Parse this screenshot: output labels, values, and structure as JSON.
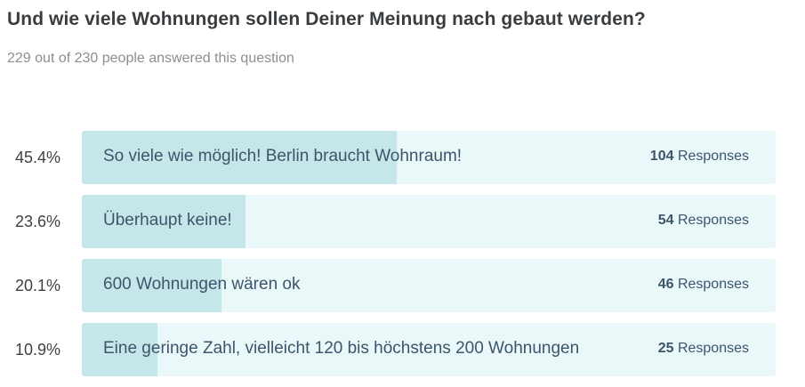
{
  "question": {
    "title": "Und wie viele Wohnungen sollen Deiner Meinung nach gebaut werden?",
    "answered": "229 out of 230 people answered this question"
  },
  "colors": {
    "track": "#ebf8f9",
    "fill": "#c5e7ea",
    "label_text": "#3c556b",
    "title_text": "#3a3d40",
    "subtitle_text": "#8a8f93"
  },
  "chart_data": {
    "type": "bar",
    "orientation": "horizontal",
    "categories": [
      "So viele wie möglich! Berlin braucht Wohnraum!",
      "Überhaupt keine!",
      "600 Wohnungen wären ok",
      "Eine geringe Zahl, vielleicht 120 bis höchstens 200 Wohnungen"
    ],
    "values": [
      104,
      54,
      46,
      25
    ],
    "percent_labels": [
      "45.4%",
      "23.6%",
      "20.1%",
      "10.9%"
    ],
    "percents": [
      45.4,
      23.6,
      20.1,
      10.9
    ],
    "count_labels": [
      "104",
      "54",
      "46",
      "25"
    ],
    "unit_label": "Responses",
    "xlim": [
      0,
      100
    ]
  }
}
